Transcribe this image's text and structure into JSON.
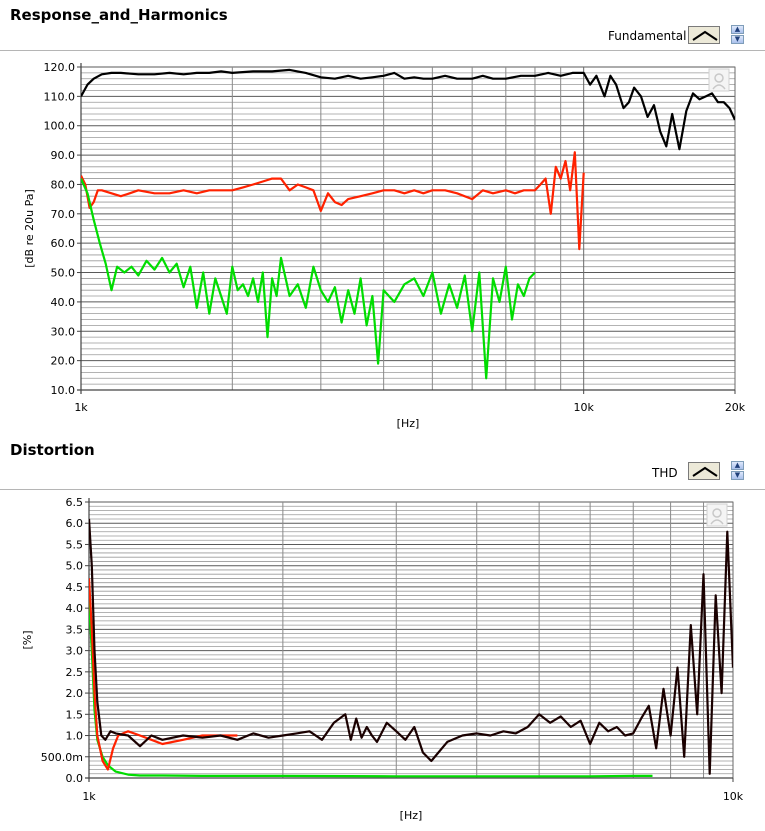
{
  "panels": {
    "response": {
      "title": "Response_and_Harmonics",
      "legend_label": "Fundamental"
    },
    "distortion": {
      "title": "Distortion",
      "legend_label": "THD"
    }
  },
  "chart_data": [
    {
      "type": "line",
      "title": "Response_and_Harmonics",
      "xlabel": "[Hz]",
      "ylabel": "[dB re 20u Pa]",
      "x_scale": "log",
      "xlim": [
        1000,
        20000
      ],
      "ylim": [
        10,
        120
      ],
      "x_tick_labels": [
        {
          "value": 1000,
          "label": "1k"
        },
        {
          "value": 10000,
          "label": "10k"
        },
        {
          "value": 20000,
          "label": "20k"
        }
      ],
      "y_tick_labels": [
        "10.0",
        "20.0",
        "30.0",
        "40.0",
        "50.0",
        "60.0",
        "70.0",
        "80.0",
        "90.0",
        "100.0",
        "110.0",
        "120.0"
      ],
      "grid": true,
      "legend": {
        "placement": "top-right",
        "entries": [
          "Fundamental"
        ]
      },
      "series": [
        {
          "color": "#000000",
          "x": [
            1000,
            1030,
            1060,
            1100,
            1150,
            1200,
            1300,
            1400,
            1500,
            1600,
            1700,
            1800,
            1900,
            2000,
            2200,
            2400,
            2600,
            2800,
            3000,
            3200,
            3400,
            3600,
            3800,
            4000,
            4200,
            4400,
            4600,
            4800,
            5000,
            5300,
            5600,
            6000,
            6300,
            6600,
            7000,
            7500,
            8000,
            8500,
            9000,
            9500,
            10000,
            10300,
            10600,
            11000,
            11300,
            11600,
            12000,
            12300,
            12600,
            13000,
            13400,
            13800,
            14200,
            14600,
            15000,
            15500,
            16000,
            16500,
            17000,
            17500,
            18000,
            18500,
            19000,
            19500,
            20000
          ],
          "y": [
            110,
            114,
            116,
            117.5,
            118,
            118,
            117.5,
            117.5,
            118,
            117.5,
            118,
            118,
            118.5,
            118,
            118.5,
            118.5,
            119,
            118,
            116.5,
            116,
            117,
            116,
            116.5,
            117,
            118,
            116,
            116.5,
            116,
            116,
            117,
            116,
            116,
            117,
            116,
            116,
            117,
            117,
            118,
            117,
            118,
            118,
            114,
            117,
            110,
            117,
            114,
            106,
            108,
            113,
            110,
            103,
            107,
            98,
            93,
            104,
            92,
            105,
            111,
            109,
            110,
            111,
            108,
            108,
            106,
            102
          ]
        },
        {
          "color": "#ff2200",
          "x": [
            1000,
            1020,
            1040,
            1060,
            1080,
            1100,
            1150,
            1200,
            1250,
            1300,
            1400,
            1500,
            1600,
            1700,
            1800,
            1900,
            2000,
            2100,
            2200,
            2300,
            2400,
            2500,
            2600,
            2700,
            2800,
            2900,
            3000,
            3100,
            3200,
            3300,
            3400,
            3600,
            3800,
            4000,
            4200,
            4400,
            4600,
            4800,
            5000,
            5300,
            5600,
            6000,
            6300,
            6600,
            7000,
            7300,
            7600,
            8000,
            8200,
            8400,
            8600,
            8800,
            9000,
            9200,
            9400,
            9600,
            9800,
            10000
          ],
          "y": [
            83,
            80,
            72,
            74,
            78,
            78,
            77,
            76,
            77,
            78,
            77,
            77,
            78,
            77,
            78,
            78,
            78,
            79,
            80,
            81,
            82,
            82,
            78,
            80,
            79,
            78,
            71,
            77,
            74,
            73,
            75,
            76,
            77,
            78,
            78,
            77,
            78,
            77,
            78,
            78,
            77,
            75,
            78,
            77,
            78,
            77,
            78,
            78,
            80,
            82,
            70,
            86,
            82,
            88,
            78,
            91,
            58,
            84
          ]
        },
        {
          "color": "#00dd00",
          "x": [
            1000,
            1030,
            1060,
            1090,
            1120,
            1150,
            1180,
            1220,
            1260,
            1300,
            1350,
            1400,
            1450,
            1500,
            1550,
            1600,
            1650,
            1700,
            1750,
            1800,
            1850,
            1900,
            1950,
            2000,
            2050,
            2100,
            2150,
            2200,
            2250,
            2300,
            2350,
            2400,
            2450,
            2500,
            2600,
            2700,
            2800,
            2900,
            3000,
            3100,
            3200,
            3300,
            3400,
            3500,
            3600,
            3700,
            3800,
            3900,
            4000,
            4200,
            4400,
            4600,
            4800,
            5000,
            5200,
            5400,
            5600,
            5800,
            6000,
            6200,
            6400,
            6600,
            6800,
            7000,
            7200,
            7400,
            7600,
            7800,
            8000
          ],
          "y": [
            82,
            77,
            68,
            60,
            53,
            44,
            52,
            50,
            52,
            49,
            54,
            51,
            55,
            50,
            53,
            45,
            52,
            38,
            50,
            36,
            48,
            42,
            36,
            52,
            44,
            46,
            42,
            48,
            40,
            50,
            28,
            48,
            42,
            55,
            42,
            46,
            38,
            52,
            44,
            40,
            45,
            33,
            44,
            36,
            48,
            32,
            42,
            19,
            44,
            40,
            46,
            48,
            42,
            50,
            36,
            46,
            38,
            49,
            30,
            50,
            14,
            48,
            40,
            52,
            34,
            46,
            42,
            48,
            50
          ]
        }
      ]
    },
    {
      "type": "line",
      "title": "Distortion",
      "xlabel": "[Hz]",
      "ylabel": "[%]",
      "x_scale": "log",
      "xlim": [
        1000,
        10000
      ],
      "ylim": [
        0,
        6.5
      ],
      "x_tick_labels": [
        {
          "value": 1000,
          "label": "1k"
        },
        {
          "value": 10000,
          "label": "10k"
        }
      ],
      "y_tick_labels": [
        "0.0",
        "500.0m",
        "1.0",
        "1.5",
        "2.0",
        "2.5",
        "3.0",
        "3.5",
        "4.0",
        "4.5",
        "5.0",
        "5.5",
        "6.0",
        "6.5"
      ],
      "grid": true,
      "legend": {
        "placement": "top-right",
        "entries": [
          "THD"
        ]
      },
      "series": [
        {
          "color": "#00dd00",
          "x": [
            1000,
            1010,
            1020,
            1030,
            1050,
            1070,
            1100,
            1150,
            1200,
            1300,
            1500,
            2000,
            3000,
            4000,
            5000,
            6000,
            7000,
            7500
          ],
          "y": [
            4.2,
            3.0,
            1.6,
            0.9,
            0.5,
            0.3,
            0.15,
            0.08,
            0.06,
            0.06,
            0.05,
            0.05,
            0.04,
            0.04,
            0.04,
            0.04,
            0.05,
            0.05
          ]
        },
        {
          "color": "#ff2200",
          "x": [
            1000,
            1010,
            1020,
            1030,
            1050,
            1070,
            1090,
            1110,
            1150,
            1200,
            1250,
            1300,
            1400,
            1500,
            1600,
            1700
          ],
          "y": [
            4.7,
            3.5,
            2.0,
            1.0,
            0.4,
            0.2,
            0.7,
            1.0,
            1.1,
            1.0,
            0.9,
            0.8,
            0.9,
            1.0,
            1.0,
            1.0
          ]
        },
        {
          "color": "#1a0000",
          "x": [
            1000,
            1010,
            1020,
            1030,
            1045,
            1060,
            1080,
            1100,
            1150,
            1200,
            1250,
            1300,
            1400,
            1500,
            1600,
            1700,
            1800,
            1900,
            2000,
            2100,
            2200,
            2300,
            2400,
            2500,
            2550,
            2600,
            2650,
            2700,
            2750,
            2800,
            2900,
            3000,
            3100,
            3200,
            3300,
            3400,
            3600,
            3800,
            4000,
            4200,
            4400,
            4600,
            4800,
            5000,
            5200,
            5400,
            5600,
            5800,
            6000,
            6200,
            6400,
            6600,
            6800,
            7000,
            7200,
            7400,
            7600,
            7800,
            8000,
            8200,
            8400,
            8600,
            8800,
            9000,
            9200,
            9400,
            9600,
            9800,
            10000
          ],
          "y": [
            6.1,
            5.0,
            3.0,
            1.8,
            1.0,
            0.9,
            1.1,
            1.05,
            1.0,
            0.75,
            1.0,
            0.9,
            1.0,
            0.95,
            1.0,
            0.9,
            1.05,
            0.95,
            1.0,
            1.05,
            1.1,
            0.9,
            1.3,
            1.5,
            0.9,
            1.4,
            0.95,
            1.2,
            1.0,
            0.85,
            1.3,
            1.1,
            0.9,
            1.2,
            0.6,
            0.4,
            0.85,
            1.0,
            1.05,
            1.0,
            1.1,
            1.05,
            1.2,
            1.5,
            1.3,
            1.45,
            1.2,
            1.35,
            0.8,
            1.3,
            1.1,
            1.2,
            1.0,
            1.05,
            1.4,
            1.7,
            0.7,
            2.1,
            1.0,
            2.6,
            0.5,
            3.6,
            1.5,
            4.8,
            0.1,
            4.3,
            2.0,
            5.8,
            2.6
          ]
        }
      ]
    }
  ]
}
